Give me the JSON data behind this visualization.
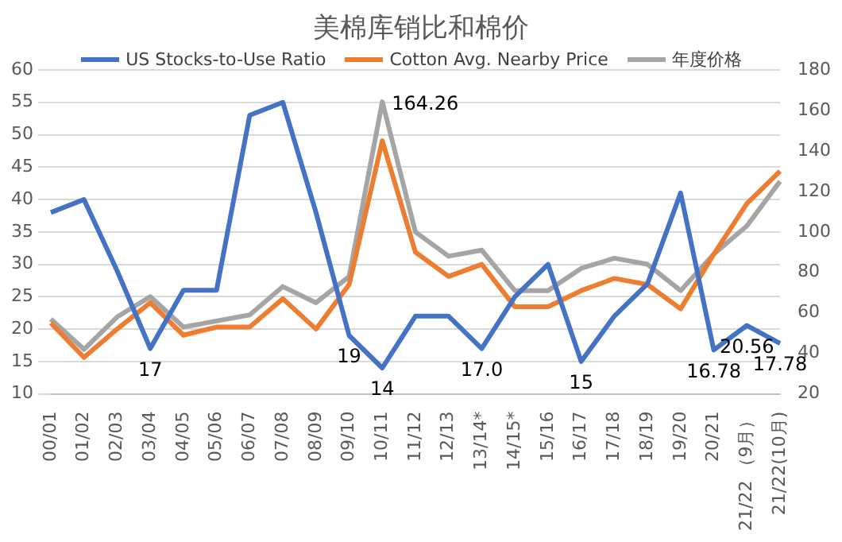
{
  "chart_data": {
    "type": "line",
    "title": "美棉库销比和棉价",
    "categories": [
      "00/01",
      "01/02",
      "02/03",
      "03/04",
      "04/05",
      "05/06",
      "06/07",
      "07/08",
      "08/09",
      "09/10",
      "10/11",
      "11/12",
      "12/13",
      "13/14*",
      "14/15*",
      "15/16",
      "16/17",
      "17/18",
      "18/19",
      "19/20",
      "20/21",
      "21/22 （9月）",
      "21/22(10月)"
    ],
    "series": [
      {
        "name": "US Stocks-to-Use Ratio",
        "color": "#4472c4",
        "values": [
          38,
          40,
          29,
          17,
          26,
          26,
          53,
          55,
          38,
          19,
          14,
          22,
          22,
          17,
          25,
          30,
          15,
          22,
          27,
          41,
          16.78,
          20.56,
          17.78
        ],
        "value_labels": [
          null,
          null,
          null,
          "17",
          null,
          null,
          null,
          null,
          null,
          "19",
          "14",
          null,
          null,
          "17.0",
          null,
          null,
          "15",
          null,
          null,
          null,
          "16.78",
          "20.56",
          "17.78"
        ]
      },
      {
        "name": "Cotton Avg. Nearby Price",
        "color": "#ed7d31",
        "axis": "y2",
        "values": [
          55,
          38,
          52,
          65,
          49,
          53,
          53,
          67,
          52,
          74,
          145,
          90,
          78,
          84,
          63,
          63,
          71,
          77,
          74,
          62,
          89,
          114,
          130
        ]
      },
      {
        "name": "年度价格",
        "color": "#a5a5a5",
        "axis": "y2",
        "values": [
          57,
          42,
          58,
          68,
          53,
          56,
          59,
          73,
          65,
          78,
          164.26,
          100,
          88,
          91,
          71,
          71,
          82,
          87,
          84,
          71,
          89,
          103,
          125
        ],
        "value_labels": [
          null,
          null,
          null,
          null,
          null,
          null,
          null,
          null,
          null,
          null,
          "164.26",
          null,
          null,
          null,
          null,
          null,
          null,
          null,
          null,
          null,
          null,
          null,
          null
        ]
      }
    ],
    "ylim": [
      10,
      60
    ],
    "yticks": [
      10,
      15,
      20,
      25,
      30,
      35,
      40,
      45,
      50,
      55,
      60
    ],
    "y2lim": [
      20,
      180
    ],
    "y2ticks": [
      20,
      40,
      60,
      80,
      100,
      120,
      140,
      160,
      180
    ],
    "grid": "y",
    "legend": "top",
    "marker": "none",
    "line_style": "solid"
  }
}
